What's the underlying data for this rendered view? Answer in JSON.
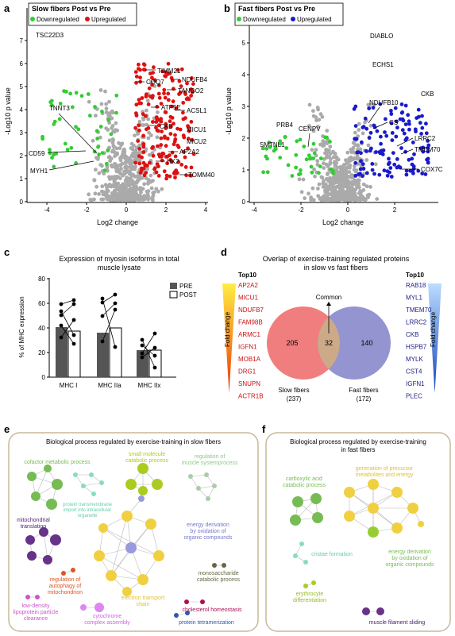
{
  "panel_a": {
    "letter": "a",
    "legend_title": "Slow fibers Post vs Pre",
    "legend_down": "Downregulated",
    "legend_up": "Upregulated",
    "xlabel": "Log2 change",
    "ylabel": "-Log10 p value",
    "down_color": "#33cc33",
    "up_color": "#dd1111",
    "labels": [
      "TSC22D3",
      "TIMM21",
      "NDUFB4",
      "COQ7",
      "TANGO2",
      "ATP5E",
      "ACSL1",
      "CKB",
      "MICU1",
      "MICU2",
      "AP2A2",
      "HK2",
      "TOMM40",
      "TNNT3",
      "CD59",
      "MYH1"
    ]
  },
  "panel_b": {
    "letter": "b",
    "legend_title": "Fast fibers Post vs Pre",
    "legend_down": "Downregulated",
    "legend_up": "Upregulated",
    "xlabel": "Log2 change",
    "ylabel": "-Log10 p value",
    "down_color": "#33cc33",
    "up_color": "#1a1acc",
    "labels": [
      "DIABLO",
      "ECHS1",
      "CKB",
      "NDUFB10",
      "CS",
      "LRRC2",
      "TMEM70",
      "COX7C",
      "PRB4",
      "CENPV",
      "SMTNL1"
    ]
  },
  "panel_c": {
    "letter": "c",
    "title_line1": "Expression of myosin isoforms in total",
    "title_line2": "muscle lysate",
    "ylabel": "% of MHC expression",
    "legend": [
      "PRE",
      "POST"
    ]
  },
  "panel_d": {
    "letter": "d",
    "title_line1": "Overlap of exercise-training regulated proteins",
    "title_line2": "in slow vs fast fibers",
    "top10_left_title": "Top10",
    "top10_right_title": "Top10",
    "fold_change": "Fold change",
    "common": "Common",
    "left_count": "205",
    "center_count": "32",
    "right_count": "140",
    "slow_label": "Slow fibers",
    "slow_total": "(237)",
    "fast_label": "Fast fibers",
    "fast_total": "(172)",
    "slow_top10": [
      "AP2A2",
      "MICU1",
      "NDUFB7",
      "FAM98B",
      "ARMC1",
      "IGFN1",
      "MOB1A",
      "DRG1",
      "SNUPN",
      "ACTR1B"
    ],
    "fast_top10": [
      "RAB18",
      "MYL1",
      "TMEM70",
      "LRRC2",
      "CKB",
      "HSPB7",
      "MYLK",
      "CST4",
      "IGFN1",
      "PLEC"
    ],
    "slow_color": "#f07070",
    "fast_color": "#8888cc"
  },
  "panel_e": {
    "letter": "e",
    "title": "Biological process regulated by exercise-training in slow fibers",
    "terms": {
      "cofactor": "cofactor metabolic process",
      "small_mol_1": "small molecule",
      "small_mol_2": "catabolic process",
      "reg_sys_1": "regulation of",
      "reg_sys_2": "muscle systemprocess",
      "prot_tm_1": "protein transmembrane",
      "prot_tm_2": "import into intracellular",
      "prot_tm_3": "organelle",
      "mito_tr_1": "mitochondrial",
      "mito_tr_2": "translation",
      "energy_1": "energy derivation",
      "energy_2": "by oxidation of",
      "energy_3": "organic compounds",
      "autoph_1": "regulation of",
      "autoph_2": "autophagy of",
      "autoph_3": "mitochondrion",
      "mono_1": "monosaccharide",
      "mono_2": "catabolic process",
      "ldl_1": "low-density",
      "ldl_2": "lipoprotein particle",
      "ldl_3": "clearance",
      "etc_1": "electron transport",
      "etc_2": "chain",
      "chol": "cholesterol homeostasis",
      "cyt_1": "cytochrome",
      "cyt_2": "complex assembly",
      "tetra": "protein tetramerization"
    }
  },
  "panel_f": {
    "letter": "f",
    "title_line1": "Biological process regulated by exercise-training",
    "title_line2": "in fast fibers",
    "terms": {
      "carb_1": "carboxylic acid",
      "carb_2": "catabolic process",
      "gen_1": "generation of precursor",
      "gen_2": "metabolites and energy",
      "cristae": "cristae formation",
      "energy_1": "energy derivation",
      "energy_2": "by oxidation of",
      "energy_3": "organic compounds",
      "ery_1": "erythrocyte",
      "ery_2": "differentiation",
      "muscle": "muscle filament sliding"
    }
  }
}
